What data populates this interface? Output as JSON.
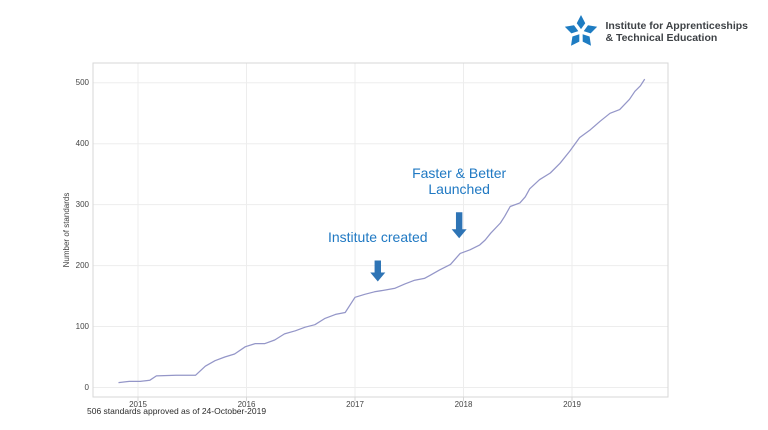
{
  "logo": {
    "name_line1": "Institute for Apprenticeships",
    "name_line2": "& Technical Education",
    "star_color": "#1E7CC2",
    "text_color": "#3E4246"
  },
  "footnote": "506 standards approved as of 24-October-2019",
  "chart_data": {
    "type": "line",
    "title": "",
    "xlabel": "",
    "ylabel": "Number of standards",
    "x_ticks": [
      2015,
      2016,
      2017,
      2018,
      2019
    ],
    "y_ticks": [
      0,
      100,
      200,
      300,
      400,
      500
    ],
    "xlim": [
      2014.59,
      2019.89
    ],
    "ylim": [
      -16,
      532
    ],
    "grid": true,
    "line_color": "#9496C8",
    "grid_color": "#EDEDED",
    "border_color": "#D7D7D7",
    "annotation_color": "#2079C3",
    "arrow_color": "#2E74B5",
    "points": [
      [
        2014.82,
        8
      ],
      [
        2014.92,
        10
      ],
      [
        2015.02,
        10
      ],
      [
        2015.11,
        12
      ],
      [
        2015.17,
        19
      ],
      [
        2015.35,
        20
      ],
      [
        2015.53,
        20
      ],
      [
        2015.62,
        35
      ],
      [
        2015.71,
        44
      ],
      [
        2015.8,
        50
      ],
      [
        2015.89,
        55
      ],
      [
        2015.99,
        67
      ],
      [
        2016.08,
        72
      ],
      [
        2016.17,
        72
      ],
      [
        2016.26,
        78
      ],
      [
        2016.35,
        88
      ],
      [
        2016.45,
        93
      ],
      [
        2016.54,
        99
      ],
      [
        2016.63,
        103
      ],
      [
        2016.72,
        113
      ],
      [
        2016.82,
        120
      ],
      [
        2016.91,
        123
      ],
      [
        2017.0,
        148
      ],
      [
        2017.09,
        153
      ],
      [
        2017.18,
        157
      ],
      [
        2017.28,
        160
      ],
      [
        2017.37,
        163
      ],
      [
        2017.46,
        170
      ],
      [
        2017.55,
        176
      ],
      [
        2017.64,
        179
      ],
      [
        2017.69,
        184
      ],
      [
        2017.78,
        193
      ],
      [
        2017.88,
        202
      ],
      [
        2017.97,
        220
      ],
      [
        2018.06,
        226
      ],
      [
        2018.15,
        234
      ],
      [
        2018.2,
        242
      ],
      [
        2018.25,
        253
      ],
      [
        2018.34,
        270
      ],
      [
        2018.38,
        281
      ],
      [
        2018.43,
        297
      ],
      [
        2018.52,
        303
      ],
      [
        2018.57,
        313
      ],
      [
        2018.61,
        326
      ],
      [
        2018.7,
        341
      ],
      [
        2018.8,
        352
      ],
      [
        2018.89,
        368
      ],
      [
        2018.98,
        388
      ],
      [
        2019.07,
        410
      ],
      [
        2019.17,
        423
      ],
      [
        2019.26,
        437
      ],
      [
        2019.35,
        450
      ],
      [
        2019.44,
        456
      ],
      [
        2019.53,
        473
      ],
      [
        2019.58,
        486
      ],
      [
        2019.63,
        495
      ],
      [
        2019.67,
        506
      ]
    ],
    "annotations": [
      {
        "lines": [
          "Institute created"
        ],
        "year": 2017.21,
        "value": 174,
        "shaft_len": 12
      },
      {
        "lines": [
          "Faster & Better",
          "Launched"
        ],
        "year": 2017.96,
        "value": 245,
        "shaft_len": 17
      }
    ]
  }
}
